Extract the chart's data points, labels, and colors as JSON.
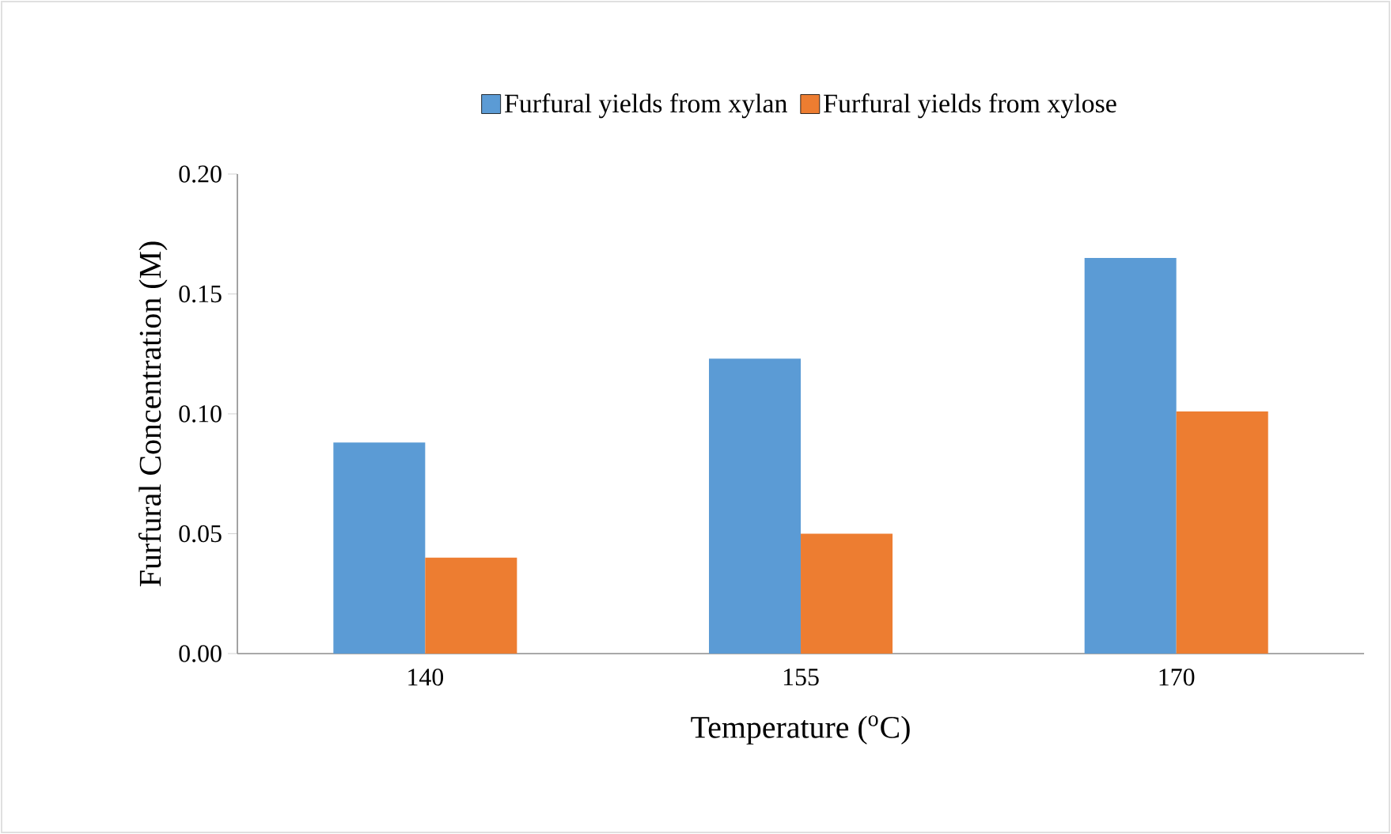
{
  "chart_data": {
    "type": "bar",
    "xlabel": "Temperature  ($^{o}$C)",
    "ylabel": "Furfural Concentration  (M)",
    "categories": [
      "140",
      "155",
      "170"
    ],
    "series": [
      {
        "name": "Furfural yields from xylan",
        "color": "#5b9bd5",
        "values": [
          0.088,
          0.123,
          0.165
        ]
      },
      {
        "name": "Furfural yields from xylose",
        "color": "#ed7d31",
        "values": [
          0.04,
          0.05,
          0.101
        ]
      }
    ],
    "ylim": [
      0,
      0.2
    ],
    "yticks": [
      {
        "value": 0,
        "label": "0.00"
      },
      {
        "value": 0.05,
        "label": "0.05"
      },
      {
        "value": 0.1,
        "label": "0.10"
      },
      {
        "value": 0.15,
        "label": "0.15"
      },
      {
        "value": 0.2,
        "label": "0.20"
      }
    ],
    "grid": false,
    "legend": "top"
  }
}
